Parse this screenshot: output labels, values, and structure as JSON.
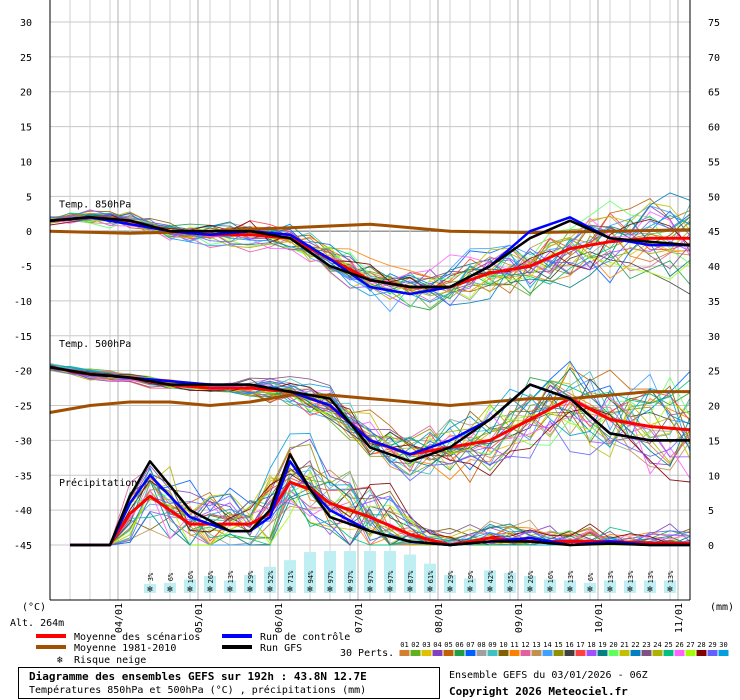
{
  "chart_data": {
    "type": "line",
    "left_axis": {
      "unit": "(°C)",
      "ticks": [
        30,
        25,
        20,
        15,
        10,
        5,
        0,
        -5,
        -10,
        -15,
        -20,
        -25,
        -30,
        -35,
        -40,
        -45
      ]
    },
    "right_axis": {
      "unit": "(mm)",
      "ticks": [
        75,
        70,
        65,
        60,
        55,
        50,
        45,
        40,
        35,
        30,
        25,
        20,
        15,
        10,
        5,
        0
      ]
    },
    "x_days": {
      "start": 0,
      "end": 8
    },
    "x_labels": [
      {
        "day": 0.85,
        "label": "04/01"
      },
      {
        "day": 1.85,
        "label": "05/01"
      },
      {
        "day": 2.85,
        "label": "06/01"
      },
      {
        "day": 3.85,
        "label": "07/01"
      },
      {
        "day": 4.85,
        "label": "08/01"
      },
      {
        "day": 5.85,
        "label": "09/01"
      },
      {
        "day": 6.85,
        "label": "10/01"
      },
      {
        "day": 7.85,
        "label": "11/01"
      }
    ],
    "section_labels": [
      {
        "text": "Temp. 850hPa",
        "y": 4
      },
      {
        "text": "Temp. 500hPa",
        "y": -16
      },
      {
        "text": "Précipitation",
        "y": -36
      }
    ],
    "altitude": "Alt. 264m",
    "series": [
      {
        "name": "Moyenne des scénarios",
        "role": "t850_mean",
        "color": "#ff0000",
        "x": [
          0,
          0.5,
          1,
          1.5,
          2,
          2.5,
          3,
          3.5,
          4,
          4.5,
          5,
          5.5,
          6,
          6.5,
          7,
          7.5,
          8
        ],
        "y": [
          1.5,
          2,
          1.5,
          0,
          -0.5,
          -0.5,
          -1,
          -4,
          -7,
          -8,
          -8,
          -6,
          -5,
          -2.5,
          -1.5,
          -1,
          -1
        ]
      },
      {
        "name": "Moyenne 1981-2010",
        "role": "t850_clim",
        "color": "#a05000",
        "x": [
          0,
          1,
          2,
          3,
          4,
          5,
          6,
          7,
          8
        ],
        "y": [
          0,
          -0.3,
          0,
          0.5,
          1,
          0,
          -0.2,
          0,
          0.2
        ]
      },
      {
        "name": "Run de contrôle",
        "role": "t850_control",
        "color": "#0000ff",
        "x": [
          0,
          0.5,
          1,
          1.5,
          2,
          2.5,
          3,
          3.5,
          4,
          4.5,
          5,
          5.5,
          6,
          6.5,
          7,
          7.5,
          8
        ],
        "y": [
          1.5,
          2,
          1,
          0,
          -0.5,
          0,
          -0.5,
          -4,
          -8,
          -9,
          -8,
          -5,
          0,
          2,
          -1,
          -2,
          -2
        ]
      },
      {
        "name": "Run GFS",
        "role": "t850_gfs",
        "color": "#000000",
        "x": [
          0,
          0.5,
          1,
          1.5,
          2,
          2.5,
          3,
          3.5,
          4,
          4.5,
          5,
          5.5,
          6,
          6.5,
          7,
          7.5,
          8
        ],
        "y": [
          1.5,
          2,
          1.5,
          0,
          0,
          0,
          -1,
          -5,
          -7,
          -8,
          -8,
          -5,
          -1,
          1.5,
          -1,
          -1.5,
          -2
        ]
      },
      {
        "name": "Moyenne des scénarios",
        "role": "t500_mean",
        "color": "#ff0000",
        "x": [
          0,
          0.5,
          1,
          1.5,
          2,
          2.5,
          3,
          3.5,
          4,
          4.5,
          5,
          5.5,
          6,
          6.5,
          7,
          7.5,
          8
        ],
        "y": [
          -19.5,
          -20.5,
          -21,
          -22,
          -22.5,
          -22.5,
          -23,
          -25,
          -30,
          -32,
          -31,
          -30,
          -27,
          -24,
          -27,
          -28,
          -28.5
        ]
      },
      {
        "name": "Moyenne 1981-2010",
        "role": "t500_clim",
        "color": "#a05000",
        "x": [
          0,
          0.5,
          1,
          1.5,
          2,
          2.5,
          3,
          3.5,
          4,
          4.5,
          5,
          5.5,
          6,
          6.5,
          7,
          7.5,
          8
        ],
        "y": [
          -26,
          -25,
          -24.5,
          -24.5,
          -25,
          -24.5,
          -23.5,
          -23.5,
          -24,
          -24.5,
          -25,
          -24.5,
          -24,
          -24,
          -23.5,
          -23,
          -23
        ]
      },
      {
        "name": "Run de contrôle",
        "role": "t500_control",
        "color": "#0000ff",
        "x": [
          0,
          0.5,
          1,
          1.5,
          2,
          2.5,
          3,
          3.5,
          4,
          4.5,
          5,
          5.5,
          6,
          6.5,
          7,
          7.5,
          8
        ],
        "y": [
          -19.5,
          -20.5,
          -21,
          -21.5,
          -22,
          -22,
          -23,
          -25,
          -30,
          -32,
          -30,
          -27,
          -22,
          -24,
          -29,
          -30,
          -30
        ]
      },
      {
        "name": "Run GFS",
        "role": "t500_gfs",
        "color": "#000000",
        "x": [
          0,
          0.5,
          1,
          1.5,
          2,
          2.5,
          3,
          3.5,
          4,
          4.5,
          5,
          5.5,
          6,
          6.5,
          7,
          7.5,
          8
        ],
        "y": [
          -19.5,
          -20.5,
          -21,
          -22,
          -22,
          -22,
          -23,
          -24,
          -31,
          -33,
          -31,
          -27,
          -22,
          -24,
          -29,
          -30,
          -30
        ]
      },
      {
        "name": "Moyenne des scénarios",
        "role": "precip_mean",
        "color": "#ff0000",
        "x": [
          0.25,
          0.75,
          1.0,
          1.25,
          1.75,
          2.25,
          2.5,
          2.75,
          3.0,
          3.25,
          3.5,
          4.0,
          4.5,
          5.0,
          5.5,
          6.0,
          6.5,
          7.0,
          7.5,
          8.0
        ],
        "y": [
          0,
          0,
          4.5,
          7,
          3,
          3,
          3,
          4.5,
          9,
          8,
          6,
          4,
          1.5,
          0,
          1,
          0.5,
          0.5,
          0.5,
          0.3,
          0.2
        ]
      },
      {
        "name": "Run de contrôle",
        "role": "precip_control",
        "color": "#0000ff",
        "x": [
          0.25,
          0.75,
          1.0,
          1.25,
          1.75,
          2.25,
          2.5,
          2.75,
          3.0,
          3.25,
          3.5,
          4.0,
          4.5,
          5.0,
          5.5,
          6.0,
          6.5,
          7.0,
          7.5,
          8.0
        ],
        "y": [
          0,
          0,
          6,
          10,
          4,
          2,
          2,
          4,
          12,
          8,
          5,
          2,
          0.5,
          0,
          0.5,
          1,
          0,
          0.5,
          0,
          0
        ]
      },
      {
        "name": "Run GFS",
        "role": "precip_gfs",
        "color": "#000000",
        "x": [
          0.25,
          0.75,
          1.0,
          1.25,
          1.75,
          2.25,
          2.5,
          2.75,
          3.0,
          3.25,
          3.5,
          4.0,
          4.5,
          5.0,
          5.5,
          6.0,
          6.5,
          7.0,
          7.5,
          8.0
        ],
        "y": [
          0,
          0,
          7,
          12,
          5,
          2,
          2,
          5,
          13,
          8,
          4,
          2,
          0.5,
          0,
          0.5,
          0.5,
          0,
          0.2,
          0,
          0
        ]
      }
    ],
    "snow_risk": {
      "label": "Risque neige",
      "items": [
        {
          "day": 1.25,
          "pct": "3%"
        },
        {
          "day": 1.5,
          "pct": "6%"
        },
        {
          "day": 1.75,
          "pct": "16%"
        },
        {
          "day": 2.0,
          "pct": "26%"
        },
        {
          "day": 2.25,
          "pct": "13%"
        },
        {
          "day": 2.5,
          "pct": "29%"
        },
        {
          "day": 2.75,
          "pct": "52%"
        },
        {
          "day": 3.0,
          "pct": "71%"
        },
        {
          "day": 3.25,
          "pct": "94%"
        },
        {
          "day": 3.5,
          "pct": "97%"
        },
        {
          "day": 3.75,
          "pct": "97%"
        },
        {
          "day": 4.0,
          "pct": "97%"
        },
        {
          "day": 4.25,
          "pct": "97%"
        },
        {
          "day": 4.5,
          "pct": "87%"
        },
        {
          "day": 4.75,
          "pct": "61%"
        },
        {
          "day": 5.0,
          "pct": "29%"
        },
        {
          "day": 5.25,
          "pct": "19%"
        },
        {
          "day": 5.5,
          "pct": "42%"
        },
        {
          "day": 5.75,
          "pct": "35%"
        },
        {
          "day": 6.0,
          "pct": "26%"
        },
        {
          "day": 6.25,
          "pct": "16%"
        },
        {
          "day": 6.5,
          "pct": "13%"
        },
        {
          "day": 6.75,
          "pct": "6%"
        },
        {
          "day": 7.0,
          "pct": "13%"
        },
        {
          "day": 7.25,
          "pct": "13%"
        },
        {
          "day": 7.5,
          "pct": "13%"
        },
        {
          "day": 7.75,
          "pct": "13%"
        }
      ]
    },
    "perturbations": {
      "label": "30 Perts.",
      "numbers": [
        "01",
        "02",
        "03",
        "04",
        "05",
        "06",
        "07",
        "08",
        "09",
        "10",
        "11",
        "12",
        "13",
        "14",
        "15",
        "16",
        "17",
        "18",
        "19",
        "20",
        "21",
        "22",
        "23",
        "24",
        "25",
        "26",
        "27",
        "28",
        "29",
        "30"
      ],
      "colors": [
        "#d08030",
        "#60b020",
        "#e0c000",
        "#8040c0",
        "#c06000",
        "#20a040",
        "#0060ff",
        "#a0a0a0",
        "#40c0c0",
        "#806000",
        "#ff8000",
        "#e060a0",
        "#c09050",
        "#40a0ff",
        "#909000",
        "#404040",
        "#ff4040",
        "#a050ff",
        "#008080",
        "#60ff60",
        "#c0c000",
        "#0080c0",
        "#805080",
        "#b0b000",
        "#00c080",
        "#ff60ff",
        "#a0ff00",
        "#800000",
        "#6060ff",
        "#00a0e0"
      ]
    }
  },
  "title": "Diagramme des ensembles GEFS sur 192h : 43.8N 12.7E",
  "subtitle": "Températures 850hPa et 500hPa (°C) , précipitations (mm)",
  "ensemble_info": "Ensemble GEFS du 03/01/2026 - 06Z",
  "copyright": "Copyright 2026 Meteociel.fr"
}
